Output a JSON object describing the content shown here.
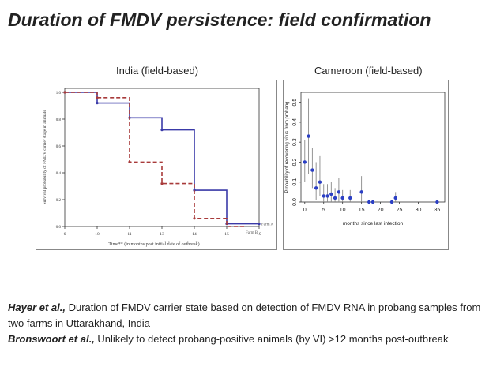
{
  "title": "Duration of FMDV persistence: field confirmation",
  "panels": {
    "left_label": "India (field-based)",
    "right_label": "Cameroon (field-based)"
  },
  "footnotes": [
    {
      "author": "Hayer et al.,",
      "text": " Duration of FMDV carrier state based on detection of FMDV RNA in probang samples from two farms in Uttarakhand, India"
    },
    {
      "author": "Bronswoort et al.,",
      "text": " Unlikely to detect probang-positive animals (by VI) >12 months post-outbreak"
    }
  ],
  "chart_data": [
    {
      "type": "line",
      "subtype": "step",
      "title": "India (field-based)",
      "xlabel": "Time** (in months post initial date of outbreak)",
      "ylabel": "Survival probability of FMDV carrier stage in animals",
      "xticks": [
        6,
        10,
        11,
        13,
        14,
        15,
        19
      ],
      "yticks": [
        "0.0",
        "0.2",
        "0.4",
        "0.6",
        "0.8",
        "1.0"
      ],
      "ylim": [
        0,
        1.05
      ],
      "series": [
        {
          "name": "Farm A",
          "color": "#3a3aa8",
          "style": "solid",
          "x": [
            6,
            10,
            11,
            13,
            14,
            15,
            19
          ],
          "y": [
            1.0,
            0.92,
            0.81,
            0.72,
            0.27,
            0.02,
            0.02
          ]
        },
        {
          "name": "Farm B",
          "color": "#a83a3a",
          "style": "dashed",
          "x": [
            6,
            10,
            11,
            13,
            14,
            15
          ],
          "y": [
            1.0,
            0.96,
            0.48,
            0.32,
            0.06,
            0.0
          ]
        }
      ]
    },
    {
      "type": "scatter",
      "title": "Cameroon (field-based)",
      "xlabel": "months since last infection",
      "ylabel": "Probability of recovering virus from probang",
      "xticks": [
        "0",
        "5",
        "10",
        "15",
        "20",
        "25",
        "30",
        "35"
      ],
      "yticks": [
        "0.0",
        "0.1",
        "0.2",
        "0.3",
        "0.4",
        "0.5"
      ],
      "xlim": [
        -1,
        37
      ],
      "ylim": [
        0,
        0.55
      ],
      "points": [
        {
          "x": 0,
          "y": 0.2,
          "lo": 0.1,
          "hi": 0.31
        },
        {
          "x": 1,
          "y": 0.33,
          "lo": 0.14,
          "hi": 0.52
        },
        {
          "x": 2,
          "y": 0.16,
          "lo": 0.07,
          "hi": 0.27
        },
        {
          "x": 3,
          "y": 0.07,
          "lo": 0.01,
          "hi": 0.2
        },
        {
          "x": 4,
          "y": 0.1,
          "lo": 0.03,
          "hi": 0.23
        },
        {
          "x": 5,
          "y": 0.03,
          "lo": 0.0,
          "hi": 0.09
        },
        {
          "x": 6,
          "y": 0.03,
          "lo": 0.0,
          "hi": 0.09
        },
        {
          "x": 7,
          "y": 0.04,
          "lo": 0.0,
          "hi": 0.1
        },
        {
          "x": 8,
          "y": 0.02,
          "lo": 0.0,
          "hi": 0.07
        },
        {
          "x": 9,
          "y": 0.05,
          "lo": 0.0,
          "hi": 0.12
        },
        {
          "x": 10,
          "y": 0.02,
          "lo": 0.0,
          "hi": 0.06
        },
        {
          "x": 12,
          "y": 0.02,
          "lo": 0.0,
          "hi": 0.06
        },
        {
          "x": 15,
          "y": 0.05,
          "lo": 0.0,
          "hi": 0.13
        },
        {
          "x": 17,
          "y": 0.0,
          "lo": 0.0,
          "hi": 0.0
        },
        {
          "x": 18,
          "y": 0.0,
          "lo": 0.0,
          "hi": 0.0
        },
        {
          "x": 23,
          "y": 0.0,
          "lo": 0.0,
          "hi": 0.0
        },
        {
          "x": 24,
          "y": 0.02,
          "lo": 0.0,
          "hi": 0.05
        },
        {
          "x": 35,
          "y": 0.0,
          "lo": 0.0,
          "hi": 0.0
        }
      ],
      "color": "#2b3fc4"
    }
  ]
}
